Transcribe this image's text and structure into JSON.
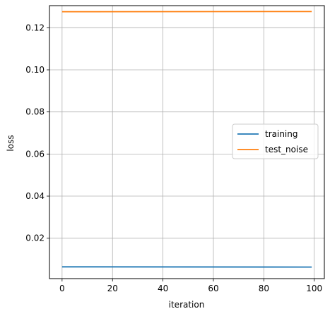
{
  "chart_data": {
    "type": "line",
    "title": "",
    "xlabel": "iteration",
    "ylabel": "loss",
    "xlim": [
      -5,
      104
    ],
    "ylim": [
      0.0008,
      0.1305
    ],
    "xticks": [
      0,
      20,
      40,
      60,
      80,
      100
    ],
    "yticks": [
      0.02,
      0.04,
      0.06,
      0.08,
      0.1,
      0.12
    ],
    "ytick_labels": [
      "0.02",
      "0.04",
      "0.06",
      "0.08",
      "0.10",
      "0.12"
    ],
    "grid": true,
    "legend_position": "center-right",
    "series": [
      {
        "name": "training",
        "color": "#1f77b4",
        "x": [
          0,
          99
        ],
        "y": [
          0.0064,
          0.0063
        ]
      },
      {
        "name": "test_noise",
        "color": "#ff7f0e",
        "x": [
          0,
          99
        ],
        "y": [
          0.1276,
          0.1277
        ]
      }
    ]
  }
}
